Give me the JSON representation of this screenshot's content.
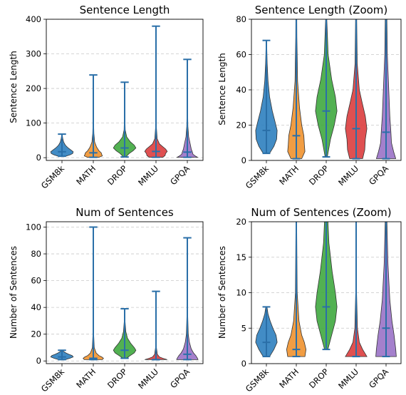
{
  "chart_data": [
    {
      "type": "violin",
      "title": "Sentence Length",
      "xlabel": "",
      "ylabel": "Sentence Length",
      "ylim": [
        -8,
        400
      ],
      "yticks": [
        0,
        100,
        200,
        300,
        400
      ],
      "grid": "y-dashed",
      "categories": [
        "GSM8k",
        "MATH",
        "DROP",
        "MMLU",
        "GPQA"
      ],
      "colors": [
        "#2e7fbf",
        "#f0922f",
        "#3fa83f",
        "#dc3d3e",
        "#9a72c6"
      ],
      "min": [
        4,
        1,
        2,
        1,
        1
      ],
      "max": [
        68,
        239,
        218,
        380,
        284
      ],
      "median": [
        17,
        14,
        28,
        18,
        16
      ],
      "density": [
        [
          [
            4,
            0.3
          ],
          [
            8,
            0.7
          ],
          [
            12,
            0.95
          ],
          [
            17,
            1
          ],
          [
            22,
            0.8
          ],
          [
            28,
            0.55
          ],
          [
            36,
            0.3
          ],
          [
            45,
            0.15
          ],
          [
            55,
            0.07
          ],
          [
            68,
            0.02
          ]
        ],
        [
          [
            1,
            0.5
          ],
          [
            5,
            0.8
          ],
          [
            9,
            0.75
          ],
          [
            14,
            0.7
          ],
          [
            20,
            0.5
          ],
          [
            30,
            0.3
          ],
          [
            45,
            0.12
          ],
          [
            70,
            0.05
          ],
          [
            110,
            0.02
          ],
          [
            239,
            0.005
          ]
        ],
        [
          [
            2,
            0.1
          ],
          [
            12,
            0.4
          ],
          [
            20,
            0.75
          ],
          [
            28,
            1
          ],
          [
            36,
            0.85
          ],
          [
            46,
            0.5
          ],
          [
            60,
            0.18
          ],
          [
            80,
            0.05
          ],
          [
            120,
            0.02
          ],
          [
            218,
            0.005
          ]
        ],
        [
          [
            1,
            0.6
          ],
          [
            6,
            0.8
          ],
          [
            12,
            0.85
          ],
          [
            18,
            1
          ],
          [
            25,
            0.85
          ],
          [
            33,
            0.55
          ],
          [
            40,
            0.3
          ],
          [
            55,
            0.1
          ],
          [
            90,
            0.03
          ],
          [
            380,
            0.004
          ]
        ],
        [
          [
            1,
            0.9
          ],
          [
            5,
            0.7
          ],
          [
            10,
            0.5
          ],
          [
            16,
            0.45
          ],
          [
            25,
            0.35
          ],
          [
            40,
            0.25
          ],
          [
            60,
            0.12
          ],
          [
            90,
            0.05
          ],
          [
            150,
            0.02
          ],
          [
            284,
            0.005
          ]
        ]
      ]
    },
    {
      "type": "violin",
      "title": "Sentence Length (Zoom)",
      "xlabel": "",
      "ylabel": "Sentence Length",
      "ylim": [
        0,
        80
      ],
      "yticks": [
        0,
        20,
        40,
        60,
        80
      ],
      "grid": "y-dashed",
      "categories": [
        "GSM8k",
        "MATH",
        "DROP",
        "MMLU",
        "GPQA"
      ],
      "colors": [
        "#2e7fbf",
        "#f0922f",
        "#3fa83f",
        "#dc3d3e",
        "#9a72c6"
      ],
      "min": [
        4,
        1,
        2,
        1,
        1
      ],
      "max": [
        68,
        239,
        218,
        380,
        284
      ],
      "median": [
        17,
        14,
        28,
        18,
        16
      ],
      "density": [
        [
          [
            4,
            0.3
          ],
          [
            8,
            0.7
          ],
          [
            12,
            0.95
          ],
          [
            17,
            1
          ],
          [
            22,
            0.8
          ],
          [
            28,
            0.55
          ],
          [
            36,
            0.3
          ],
          [
            45,
            0.15
          ],
          [
            55,
            0.07
          ],
          [
            68,
            0.02
          ]
        ],
        [
          [
            1,
            0.5
          ],
          [
            5,
            0.8
          ],
          [
            9,
            0.75
          ],
          [
            14,
            0.7
          ],
          [
            20,
            0.5
          ],
          [
            30,
            0.3
          ],
          [
            45,
            0.12
          ],
          [
            70,
            0.05
          ],
          [
            110,
            0.02
          ],
          [
            239,
            0.005
          ]
        ],
        [
          [
            2,
            0.1
          ],
          [
            12,
            0.4
          ],
          [
            20,
            0.75
          ],
          [
            28,
            1
          ],
          [
            36,
            0.85
          ],
          [
            46,
            0.5
          ],
          [
            60,
            0.18
          ],
          [
            80,
            0.05
          ],
          [
            120,
            0.02
          ],
          [
            218,
            0.005
          ]
        ],
        [
          [
            1,
            0.6
          ],
          [
            6,
            0.8
          ],
          [
            12,
            0.85
          ],
          [
            18,
            1
          ],
          [
            25,
            0.85
          ],
          [
            33,
            0.55
          ],
          [
            40,
            0.3
          ],
          [
            55,
            0.1
          ],
          [
            90,
            0.03
          ],
          [
            380,
            0.004
          ]
        ],
        [
          [
            1,
            0.9
          ],
          [
            5,
            0.7
          ],
          [
            10,
            0.5
          ],
          [
            16,
            0.45
          ],
          [
            25,
            0.35
          ],
          [
            40,
            0.25
          ],
          [
            60,
            0.12
          ],
          [
            90,
            0.05
          ],
          [
            150,
            0.02
          ],
          [
            284,
            0.005
          ]
        ]
      ]
    },
    {
      "type": "violin",
      "title": "Num of Sentences",
      "xlabel": "",
      "ylabel": "Number of Sentences",
      "ylim": [
        -2,
        104
      ],
      "yticks": [
        0,
        20,
        40,
        60,
        80,
        100
      ],
      "grid": "y-dashed",
      "categories": [
        "GSM8k",
        "MATH",
        "DROP",
        "MMLU",
        "GPQA"
      ],
      "colors": [
        "#2e7fbf",
        "#f0922f",
        "#3fa83f",
        "#dc3d3e",
        "#9a72c6"
      ],
      "min": [
        1,
        1,
        2,
        1,
        1
      ],
      "max": [
        8,
        100,
        39,
        52,
        92
      ],
      "median": [
        3,
        2,
        8,
        1,
        5
      ],
      "density": [
        [
          [
            1,
            0.3
          ],
          [
            2,
            0.7
          ],
          [
            3,
            1
          ],
          [
            4,
            0.9
          ],
          [
            5,
            0.6
          ],
          [
            6,
            0.35
          ],
          [
            7,
            0.15
          ],
          [
            8,
            0.05
          ]
        ],
        [
          [
            1,
            0.8
          ],
          [
            2,
            0.9
          ],
          [
            3,
            0.75
          ],
          [
            4,
            0.5
          ],
          [
            6,
            0.25
          ],
          [
            10,
            0.08
          ],
          [
            20,
            0.03
          ],
          [
            40,
            0.01
          ],
          [
            100,
            0.003
          ]
        ],
        [
          [
            2,
            0.15
          ],
          [
            4,
            0.5
          ],
          [
            6,
            0.85
          ],
          [
            8,
            1
          ],
          [
            10,
            0.85
          ],
          [
            13,
            0.55
          ],
          [
            17,
            0.25
          ],
          [
            22,
            0.1
          ],
          [
            30,
            0.03
          ],
          [
            39,
            0.01
          ]
        ],
        [
          [
            1,
            1
          ],
          [
            2,
            0.6
          ],
          [
            3,
            0.3
          ],
          [
            5,
            0.12
          ],
          [
            10,
            0.04
          ],
          [
            20,
            0.015
          ],
          [
            52,
            0.004
          ]
        ],
        [
          [
            1,
            0.95
          ],
          [
            2,
            0.9
          ],
          [
            4,
            0.75
          ],
          [
            6,
            0.55
          ],
          [
            9,
            0.35
          ],
          [
            14,
            0.18
          ],
          [
            20,
            0.08
          ],
          [
            35,
            0.03
          ],
          [
            60,
            0.01
          ],
          [
            92,
            0.003
          ]
        ]
      ]
    },
    {
      "type": "violin",
      "title": "Num of Sentences (Zoom)",
      "xlabel": "",
      "ylabel": "Number of Sentences",
      "ylim": [
        0,
        20
      ],
      "yticks": [
        0,
        5,
        10,
        15,
        20
      ],
      "grid": "y-dashed",
      "categories": [
        "GSM8k",
        "MATH",
        "DROP",
        "MMLU",
        "GPQA"
      ],
      "colors": [
        "#2e7fbf",
        "#f0922f",
        "#3fa83f",
        "#dc3d3e",
        "#9a72c6"
      ],
      "min": [
        1,
        1,
        2,
        1,
        1
      ],
      "max": [
        8,
        100,
        39,
        52,
        92
      ],
      "median": [
        3,
        2,
        8,
        1,
        5
      ],
      "density": [
        [
          [
            1,
            0.3
          ],
          [
            2,
            0.7
          ],
          [
            3,
            1
          ],
          [
            4,
            0.9
          ],
          [
            5,
            0.6
          ],
          [
            6,
            0.35
          ],
          [
            7,
            0.15
          ],
          [
            8,
            0.05
          ]
        ],
        [
          [
            1,
            0.8
          ],
          [
            2,
            0.9
          ],
          [
            3,
            0.75
          ],
          [
            4,
            0.5
          ],
          [
            6,
            0.25
          ],
          [
            10,
            0.08
          ],
          [
            20,
            0.03
          ],
          [
            40,
            0.01
          ],
          [
            100,
            0.003
          ]
        ],
        [
          [
            2,
            0.15
          ],
          [
            4,
            0.5
          ],
          [
            6,
            0.85
          ],
          [
            8,
            1
          ],
          [
            10,
            0.85
          ],
          [
            13,
            0.55
          ],
          [
            17,
            0.25
          ],
          [
            22,
            0.1
          ],
          [
            30,
            0.03
          ],
          [
            39,
            0.01
          ]
        ],
        [
          [
            1,
            1
          ],
          [
            2,
            0.6
          ],
          [
            3,
            0.3
          ],
          [
            5,
            0.12
          ],
          [
            10,
            0.04
          ],
          [
            20,
            0.015
          ],
          [
            52,
            0.004
          ]
        ],
        [
          [
            1,
            0.95
          ],
          [
            2,
            0.9
          ],
          [
            4,
            0.75
          ],
          [
            6,
            0.55
          ],
          [
            9,
            0.35
          ],
          [
            14,
            0.18
          ],
          [
            20,
            0.08
          ],
          [
            35,
            0.03
          ],
          [
            60,
            0.01
          ],
          [
            92,
            0.003
          ]
        ]
      ]
    }
  ]
}
